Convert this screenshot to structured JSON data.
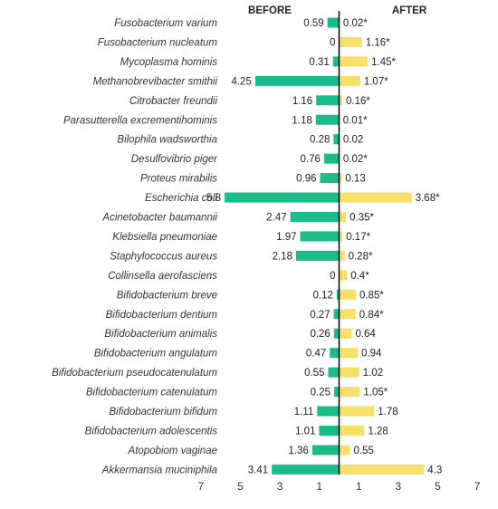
{
  "chart_data": {
    "type": "bar",
    "orientation": "horizontal-diverging",
    "headers": {
      "left": "BEFORE",
      "right": "AFTER"
    },
    "categories": [
      "Fusobacterium varium",
      "Fusobacterium nucleatum",
      "Mycoplasma hominis",
      "Methanobrevibacter smithii",
      "Citrobacter freundii",
      "Parasutterella excrementihominis",
      "Bilophila wadsworthia",
      "Desulfovibrio piger",
      "Proteus mirabilis",
      "Escherichia coli",
      "Acinetobacter baumannii",
      "Klebsiella pneumoniae",
      "Staphylococcus aureus",
      "Collinsella aerofasciens",
      "Bifidobacterium breve",
      "Bifidobacterium dentium",
      "Bifidobacterium animalis",
      "Bifidobacterium angulatum",
      "Bifidobacterium pseudocatenulatum",
      "Bifidobacterium catenulatum",
      "Bifidobacterium bifidum",
      "Bifidobacterium adolescentis",
      "Atopobiom vaginae",
      "Akkermansia muciniphila"
    ],
    "series": [
      {
        "values": [
          0.59,
          0,
          0.31,
          4.25,
          1.16,
          1.18,
          0.28,
          0.76,
          0.96,
          5.8,
          2.47,
          1.97,
          2.18,
          0,
          0.12,
          0.27,
          0.26,
          0.47,
          0.55,
          0.25,
          1.11,
          1.01,
          1.36,
          3.41
        ],
        "labels": [
          "0.59",
          "0",
          "0.31",
          "4.25",
          "1.16",
          "1.18",
          "0.28",
          "0.76",
          "0.96",
          "5.8",
          "2.47",
          "1.97",
          "2.18",
          "0",
          "0.12",
          "0.27",
          "0.26",
          "0.47",
          "0.55",
          "0.25",
          "1.11",
          "1.01",
          "1.36",
          "3.41"
        ]
      },
      {
        "values": [
          0.02,
          1.16,
          1.45,
          1.07,
          0.16,
          0.01,
          0.02,
          0.02,
          0.13,
          3.68,
          0.35,
          0.17,
          0.28,
          0.4,
          0.85,
          0.84,
          0.64,
          0.94,
          1.02,
          1.05,
          1.78,
          1.28,
          0.55,
          4.3
        ],
        "labels": [
          "0.02*",
          "1.16*",
          "1.45*",
          "1.07*",
          "0.16*",
          "0.01*",
          "0.02",
          "0.02*",
          "0.13",
          "3.68*",
          "0.35*",
          "0.17*",
          "0.28*",
          "0.4*",
          "0.85*",
          "0.84*",
          "0.64",
          "0.94",
          "1.02",
          "1.05*",
          "1.78",
          "1.28",
          "0.55",
          "4.3"
        ]
      }
    ],
    "x_ticks": [
      "7",
      "5",
      "3",
      "1",
      "1",
      "3",
      "5",
      "7"
    ],
    "xlim": [
      -7,
      7
    ],
    "colors": {
      "before": "#1abc8c",
      "after": "#f7e06a",
      "axis": "#111111"
    },
    "grid": false,
    "legend": "none"
  }
}
